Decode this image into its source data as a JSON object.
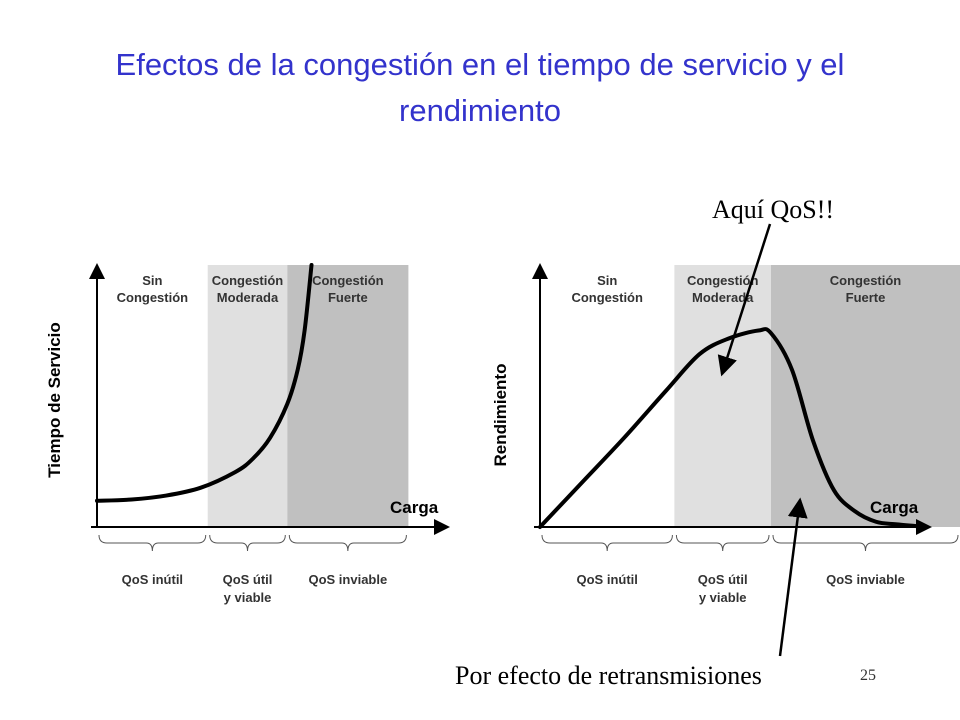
{
  "title_line1": "Efectos de la congestión en el tiempo de servicio y el",
  "title_line2": "rendimiento",
  "page_number": "25",
  "colors": {
    "title": "#3333cc",
    "zone_moderate": "#e0e0e0",
    "zone_strong": "#c0c0c0"
  },
  "chart_data": [
    {
      "type": "line",
      "title": "",
      "xlabel": "Carga",
      "ylabel": "Tiempo de Servicio",
      "xlim": [
        0,
        100
      ],
      "ylim": [
        0,
        100
      ],
      "zones": [
        {
          "label": [
            "Sin",
            "Congestión"
          ],
          "range": [
            0,
            32
          ]
        },
        {
          "label": [
            "Congestión",
            "Moderada"
          ],
          "range": [
            32,
            55
          ]
        },
        {
          "label": [
            "Congestión",
            "Fuerte"
          ],
          "range": [
            55,
            90
          ]
        }
      ],
      "braces": [
        {
          "label": [
            "QoS inútil"
          ],
          "range": [
            0,
            32
          ]
        },
        {
          "label": [
            "QoS útil",
            "y viable"
          ],
          "range": [
            32,
            55
          ]
        },
        {
          "label": [
            "QoS inviable"
          ],
          "range": [
            55,
            90
          ]
        }
      ],
      "series": [
        {
          "x": [
            0,
            10,
            20,
            30,
            40,
            45,
            50,
            55,
            58,
            60,
            62
          ],
          "y": [
            10,
            10.5,
            12,
            15,
            21,
            26,
            34,
            47,
            60,
            75,
            100
          ]
        }
      ]
    },
    {
      "type": "line",
      "title": "",
      "xlabel": "Carga",
      "ylabel": "Rendimiento",
      "xlim": [
        0,
        100
      ],
      "ylim": [
        0,
        100
      ],
      "zones": [
        {
          "label": [
            "Sin",
            "Congestión"
          ],
          "range": [
            0,
            32
          ]
        },
        {
          "label": [
            "Congestión",
            "Moderada"
          ],
          "range": [
            32,
            55
          ]
        },
        {
          "label": [
            "Congestión",
            "Fuerte"
          ],
          "range": [
            55,
            100
          ]
        }
      ],
      "braces": [
        {
          "label": [
            "QoS inútil"
          ],
          "range": [
            0,
            32
          ]
        },
        {
          "label": [
            "QoS útil",
            "y viable"
          ],
          "range": [
            32,
            55
          ]
        },
        {
          "label": [
            "QoS inviable"
          ],
          "range": [
            55,
            100
          ]
        }
      ],
      "series": [
        {
          "x": [
            0,
            10,
            20,
            30,
            38,
            45,
            52,
            55,
            60,
            65,
            70,
            75,
            80,
            85,
            92
          ],
          "y": [
            0,
            17,
            34,
            52,
            66,
            72,
            75,
            74,
            60,
            33,
            14,
            6,
            2,
            1,
            0
          ]
        }
      ]
    }
  ],
  "annotations": {
    "top": "Aquí QoS!!",
    "bottom": "Por efecto de retransmisiones"
  }
}
